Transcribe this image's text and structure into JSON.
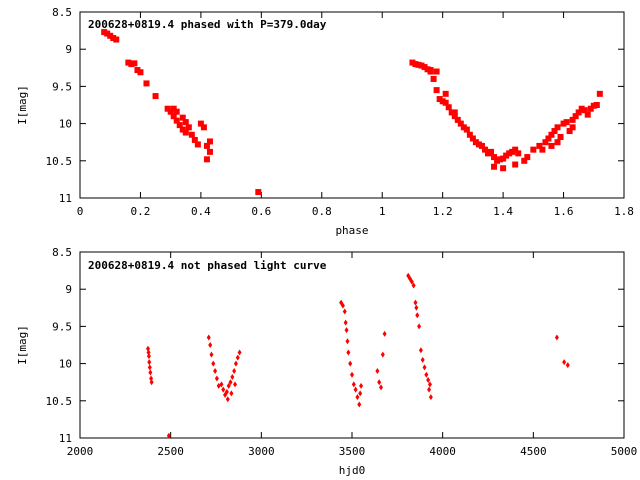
{
  "chart_data": [
    {
      "type": "scatter",
      "title": "200628+0819.4 phased with P=379.0day",
      "xlabel": "phase",
      "ylabel": "I[mag]",
      "xlim": [
        0,
        1.8
      ],
      "ylim": [
        8.5,
        11
      ],
      "y_inverted": true,
      "x_ticks": [
        "0",
        "0.2",
        "0.4",
        "0.6",
        "0.8",
        "1",
        "1.2",
        "1.4",
        "1.6",
        "1.8"
      ],
      "y_ticks": [
        "8.5",
        "9",
        "9.5",
        "10",
        "10.5",
        "11"
      ],
      "marker_color": "#ff0000",
      "marker": "square",
      "points": [
        [
          0.08,
          8.77
        ],
        [
          0.09,
          8.79
        ],
        [
          0.1,
          8.82
        ],
        [
          0.11,
          8.85
        ],
        [
          0.12,
          8.87
        ],
        [
          0.16,
          9.18
        ],
        [
          0.17,
          9.2
        ],
        [
          0.18,
          9.19
        ],
        [
          0.19,
          9.28
        ],
        [
          0.2,
          9.31
        ],
        [
          0.22,
          9.46
        ],
        [
          0.25,
          9.63
        ],
        [
          0.29,
          9.8
        ],
        [
          0.3,
          9.84
        ],
        [
          0.31,
          9.9
        ],
        [
          0.32,
          9.96
        ],
        [
          0.33,
          10.02
        ],
        [
          0.34,
          10.08
        ],
        [
          0.35,
          10.12
        ],
        [
          0.31,
          9.8
        ],
        [
          0.32,
          9.84
        ],
        [
          0.34,
          9.92
        ],
        [
          0.35,
          9.98
        ],
        [
          0.36,
          10.05
        ],
        [
          0.37,
          10.15
        ],
        [
          0.38,
          10.22
        ],
        [
          0.39,
          10.28
        ],
        [
          0.4,
          10.0
        ],
        [
          0.41,
          10.05
        ],
        [
          0.42,
          10.3
        ],
        [
          0.43,
          10.38
        ],
        [
          0.42,
          10.48
        ],
        [
          0.43,
          10.24
        ],
        [
          0.59,
          10.92
        ],
        [
          1.1,
          9.18
        ],
        [
          1.11,
          9.2
        ],
        [
          1.12,
          9.21
        ],
        [
          1.13,
          9.22
        ],
        [
          1.14,
          9.24
        ],
        [
          1.15,
          9.27
        ],
        [
          1.16,
          9.3
        ],
        [
          1.17,
          9.4
        ],
        [
          1.18,
          9.55
        ],
        [
          1.19,
          9.67
        ],
        [
          1.2,
          9.7
        ],
        [
          1.21,
          9.72
        ],
        [
          1.22,
          9.78
        ],
        [
          1.23,
          9.85
        ],
        [
          1.24,
          9.9
        ],
        [
          1.25,
          9.95
        ],
        [
          1.26,
          10.0
        ],
        [
          1.27,
          10.05
        ],
        [
          1.28,
          10.08
        ],
        [
          1.29,
          10.15
        ],
        [
          1.3,
          10.2
        ],
        [
          1.31,
          10.25
        ],
        [
          1.32,
          10.28
        ],
        [
          1.33,
          10.3
        ],
        [
          1.34,
          10.35
        ],
        [
          1.35,
          10.4
        ],
        [
          1.36,
          10.38
        ],
        [
          1.37,
          10.45
        ],
        [
          1.38,
          10.5
        ],
        [
          1.39,
          10.48
        ],
        [
          1.4,
          10.47
        ],
        [
          1.41,
          10.43
        ],
        [
          1.42,
          10.4
        ],
        [
          1.43,
          10.38
        ],
        [
          1.44,
          10.35
        ],
        [
          1.45,
          10.4
        ],
        [
          1.47,
          10.5
        ],
        [
          1.5,
          10.35
        ],
        [
          1.52,
          10.3
        ],
        [
          1.53,
          10.35
        ],
        [
          1.54,
          10.25
        ],
        [
          1.55,
          10.2
        ],
        [
          1.56,
          10.15
        ],
        [
          1.57,
          10.1
        ],
        [
          1.58,
          10.05
        ],
        [
          1.59,
          10.18
        ],
        [
          1.6,
          10.0
        ],
        [
          1.61,
          9.98
        ],
        [
          1.62,
          10.1
        ],
        [
          1.63,
          9.95
        ],
        [
          1.64,
          9.9
        ],
        [
          1.65,
          9.85
        ],
        [
          1.66,
          9.8
        ],
        [
          1.67,
          9.82
        ],
        [
          1.68,
          9.88
        ],
        [
          1.69,
          9.8
        ],
        [
          1.7,
          9.76
        ],
        [
          1.71,
          9.75
        ],
        [
          1.72,
          9.6
        ],
        [
          1.18,
          9.3
        ],
        [
          1.16,
          9.28
        ],
        [
          1.21,
          9.6
        ],
        [
          1.24,
          9.85
        ],
        [
          1.37,
          10.58
        ],
        [
          1.4,
          10.6
        ],
        [
          1.44,
          10.55
        ],
        [
          1.48,
          10.45
        ],
        [
          1.56,
          10.3
        ],
        [
          1.58,
          10.25
        ],
        [
          1.63,
          10.05
        ]
      ]
    },
    {
      "type": "scatter",
      "title": "200628+0819.4 not phased light curve",
      "xlabel": "hjd0",
      "ylabel": "I[mag]",
      "xlim": [
        2000,
        5000
      ],
      "ylim": [
        8.5,
        11
      ],
      "y_inverted": true,
      "x_ticks": [
        "2000",
        "2500",
        "3000",
        "3500",
        "4000",
        "4500",
        "5000"
      ],
      "y_ticks": [
        "8.5",
        "9",
        "9.5",
        "10",
        "10.5",
        "11"
      ],
      "marker_color": "#ff0000",
      "marker": "diamond",
      "points": [
        [
          2375,
          9.8
        ],
        [
          2378,
          9.85
        ],
        [
          2380,
          9.9
        ],
        [
          2382,
          9.98
        ],
        [
          2385,
          10.05
        ],
        [
          2388,
          10.12
        ],
        [
          2392,
          10.2
        ],
        [
          2395,
          10.25
        ],
        [
          2490,
          10.97
        ],
        [
          2710,
          9.65
        ],
        [
          2718,
          9.75
        ],
        [
          2725,
          9.88
        ],
        [
          2735,
          10.0
        ],
        [
          2745,
          10.1
        ],
        [
          2755,
          10.2
        ],
        [
          2765,
          10.3
        ],
        [
          2780,
          10.28
        ],
        [
          2790,
          10.35
        ],
        [
          2800,
          10.42
        ],
        [
          2810,
          10.38
        ],
        [
          2820,
          10.3
        ],
        [
          2830,
          10.25
        ],
        [
          2840,
          10.18
        ],
        [
          2850,
          10.1
        ],
        [
          2860,
          10.0
        ],
        [
          2870,
          9.92
        ],
        [
          2880,
          9.85
        ],
        [
          2815,
          10.48
        ],
        [
          2835,
          10.4
        ],
        [
          2855,
          10.28
        ],
        [
          3440,
          9.18
        ],
        [
          3450,
          9.22
        ],
        [
          3460,
          9.3
        ],
        [
          3465,
          9.45
        ],
        [
          3470,
          9.55
        ],
        [
          3475,
          9.7
        ],
        [
          3480,
          9.85
        ],
        [
          3490,
          10.0
        ],
        [
          3500,
          10.15
        ],
        [
          3510,
          10.28
        ],
        [
          3520,
          10.35
        ],
        [
          3530,
          10.45
        ],
        [
          3540,
          10.55
        ],
        [
          3545,
          10.4
        ],
        [
          3550,
          10.3
        ],
        [
          3640,
          10.1
        ],
        [
          3650,
          10.25
        ],
        [
          3660,
          10.32
        ],
        [
          3670,
          9.88
        ],
        [
          3680,
          9.6
        ],
        [
          3810,
          8.82
        ],
        [
          3820,
          8.86
        ],
        [
          3830,
          8.9
        ],
        [
          3840,
          8.95
        ],
        [
          3850,
          9.18
        ],
        [
          3855,
          9.25
        ],
        [
          3860,
          9.35
        ],
        [
          3870,
          9.5
        ],
        [
          3880,
          9.82
        ],
        [
          3890,
          9.95
        ],
        [
          3900,
          10.05
        ],
        [
          3910,
          10.15
        ],
        [
          3920,
          10.22
        ],
        [
          3930,
          10.28
        ],
        [
          3925,
          10.35
        ],
        [
          3935,
          10.45
        ],
        [
          4630,
          9.65
        ],
        [
          4670,
          9.98
        ],
        [
          4690,
          10.02
        ]
      ]
    }
  ]
}
